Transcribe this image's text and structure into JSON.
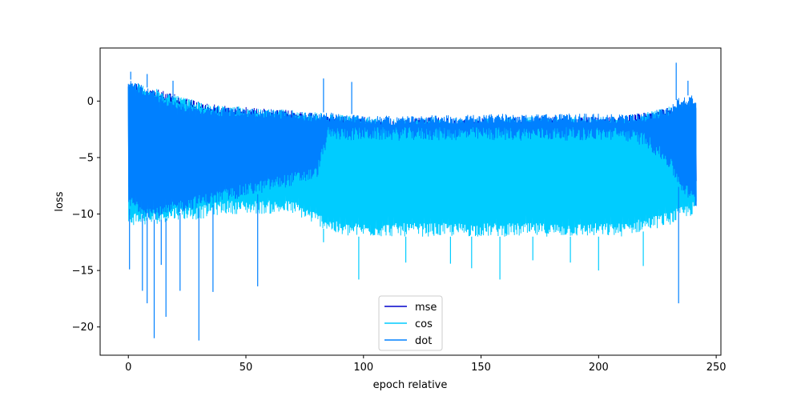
{
  "chart_data": {
    "type": "line",
    "title": "",
    "xlabel": "epoch relative",
    "ylabel": "loss",
    "xlim": [
      -12,
      252
    ],
    "ylim": [
      -22.5,
      4.7
    ],
    "xticks": [
      0,
      50,
      100,
      150,
      200,
      250
    ],
    "xtick_labels": [
      "0",
      "50",
      "100",
      "150",
      "200",
      "250"
    ],
    "yticks": [
      0,
      -5,
      -10,
      -15,
      -20
    ],
    "ytick_labels": [
      "0",
      "−5",
      "−10",
      "−15",
      "−20"
    ],
    "grid": false,
    "legend_position": "lower-center",
    "x_range": [
      0,
      241.5
    ],
    "series": [
      {
        "name": "mse",
        "color": "#0000cc",
        "envelope": {
          "x": [
            0,
            10,
            20,
            30,
            40,
            50,
            60,
            70,
            80,
            90,
            100,
            110,
            120,
            130,
            140,
            150,
            160,
            170,
            180,
            190,
            200,
            210,
            220,
            230,
            241.5
          ],
          "upper": [
            1.8,
            1.2,
            0.6,
            0.0,
            -0.4,
            -0.5,
            -0.7,
            -0.8,
            -1.0,
            -1.2,
            -1.4,
            -1.5,
            -1.5,
            -1.4,
            -1.5,
            -1.5,
            -1.4,
            -1.3,
            -1.4,
            -1.3,
            -1.4,
            -1.3,
            -1.0,
            -0.5,
            0.0
          ],
          "lower": [
            -8,
            -8,
            -8,
            -8,
            -7.5,
            -7,
            -7,
            -6.5,
            -5,
            -4,
            -3.5,
            -3.5,
            -3.5,
            -3.5,
            -3.5,
            -3.5,
            -3.5,
            -3.5,
            -3.5,
            -3.5,
            -3.5,
            -3.5,
            -4,
            -6,
            -8
          ]
        }
      },
      {
        "name": "cos",
        "color": "#00ccff",
        "envelope": {
          "x": [
            0,
            10,
            20,
            30,
            40,
            50,
            60,
            70,
            80,
            90,
            100,
            110,
            120,
            130,
            140,
            150,
            160,
            170,
            180,
            190,
            200,
            210,
            220,
            230,
            241.5
          ],
          "upper": [
            1.8,
            1.2,
            0.6,
            0.0,
            -0.4,
            -0.5,
            -0.7,
            -0.8,
            -1.0,
            -1.2,
            -1.4,
            -1.5,
            -1.5,
            -1.4,
            -1.5,
            -1.5,
            -1.4,
            -1.3,
            -1.4,
            -1.3,
            -1.4,
            -1.3,
            -1.0,
            -0.5,
            0.0
          ],
          "lower": [
            -11,
            -11,
            -10.5,
            -10.5,
            -10,
            -10,
            -10,
            -10,
            -11,
            -12,
            -12,
            -12,
            -12,
            -12,
            -12,
            -12,
            -12,
            -12,
            -12,
            -12,
            -12,
            -12,
            -11.5,
            -11,
            -10
          ]
        },
        "spikes": [
          [
            83,
            -12.5
          ],
          [
            98,
            -15.8
          ],
          [
            118,
            -14.3
          ],
          [
            137,
            -14.4
          ],
          [
            146,
            -14.8
          ],
          [
            158,
            -15.8
          ],
          [
            172,
            -14.1
          ],
          [
            188,
            -14.3
          ],
          [
            200,
            -15.0
          ],
          [
            219,
            -14.6
          ]
        ]
      },
      {
        "name": "dot",
        "color": "#0080ff",
        "envelope": {
          "x": [
            0,
            5,
            10,
            15,
            20,
            30,
            40,
            50,
            60,
            70,
            80,
            85,
            90,
            100,
            110,
            120,
            130,
            140,
            150,
            160,
            170,
            180,
            190,
            200,
            210,
            220,
            230,
            235,
            241.5
          ],
          "upper": [
            2.0,
            1.5,
            1.0,
            0.5,
            0.0,
            -0.3,
            -0.6,
            -0.6,
            -0.7,
            -0.9,
            -1.0,
            -1.0,
            -1.1,
            -1.2,
            -1.3,
            -1.3,
            -1.2,
            -1.2,
            -1.2,
            -1.1,
            -1.2,
            -1.1,
            -1.1,
            -1.1,
            -1.2,
            -1.0,
            -0.5,
            0.5,
            0.5
          ],
          "lower": [
            -9.5,
            -10,
            -10.5,
            -10.5,
            -10,
            -9.5,
            -9,
            -8.5,
            -8,
            -7.5,
            -7,
            -3.5,
            -3.5,
            -3.5,
            -3.5,
            -3.5,
            -3.5,
            -3.5,
            -3.5,
            -3.5,
            -3.5,
            -3.5,
            -3.5,
            -3.5,
            -3.5,
            -4,
            -6,
            -8,
            -9.5
          ]
        },
        "spikes": [
          [
            0.5,
            -14.9
          ],
          [
            6,
            -16.8
          ],
          [
            8,
            -17.9
          ],
          [
            11,
            -21.0
          ],
          [
            14,
            -14.5
          ],
          [
            16,
            -19.1
          ],
          [
            22,
            -16.8
          ],
          [
            30,
            -21.2
          ],
          [
            36,
            -16.9
          ],
          [
            55,
            -16.4
          ],
          [
            234,
            -17.9
          ],
          [
            1,
            2.6
          ],
          [
            8,
            2.4
          ],
          [
            19,
            1.8
          ],
          [
            83,
            2.0
          ],
          [
            95,
            1.7
          ],
          [
            233,
            3.4
          ],
          [
            238,
            1.8
          ]
        ]
      }
    ]
  },
  "legend": {
    "items": [
      {
        "label": "mse",
        "color": "#0000cc"
      },
      {
        "label": "cos",
        "color": "#00ccff"
      },
      {
        "label": "dot",
        "color": "#0080ff"
      }
    ]
  }
}
